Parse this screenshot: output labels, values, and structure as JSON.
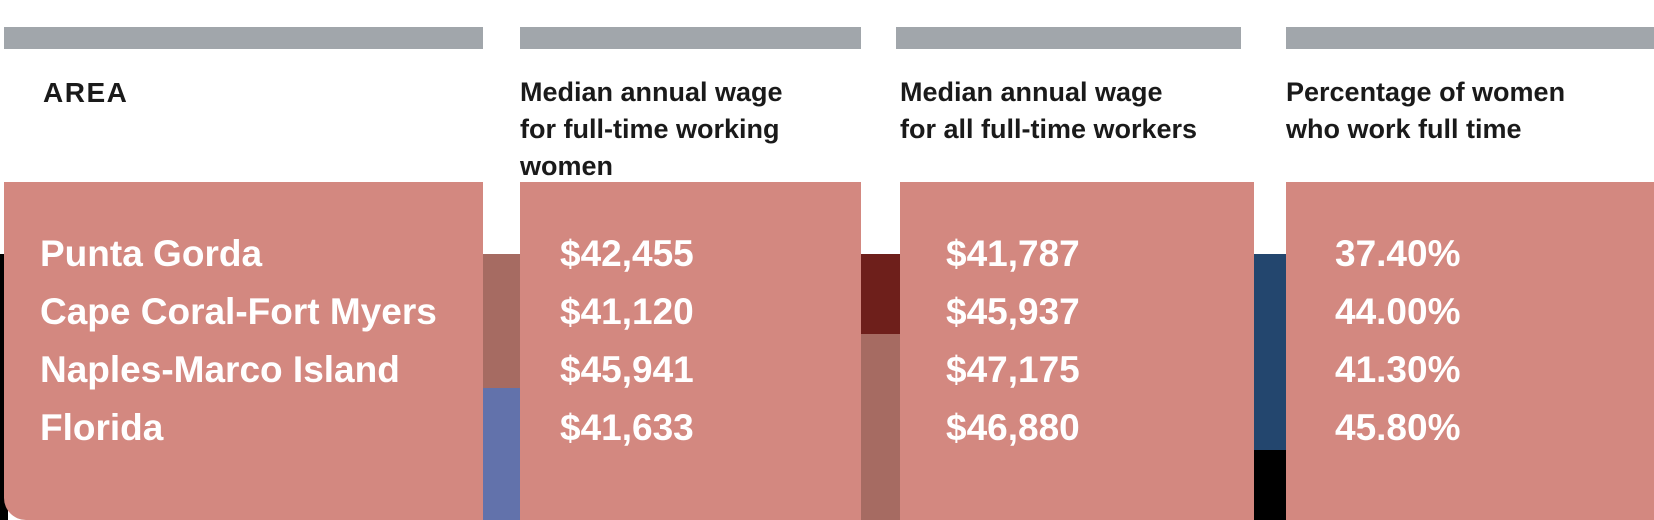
{
  "colors": {
    "header_bar": "#a1a6ab",
    "panel": "#d38880",
    "header_text": "#1a1a1a",
    "value_text": "#ffffff",
    "map_red": "#a66b62",
    "map_dark_red": "#6e1f1b",
    "map_blue": "#6272ab",
    "map_navy": "#23466e",
    "map_black": "#000000"
  },
  "table": {
    "columns": [
      {
        "header": "AREA",
        "values": [
          "Punta Gorda",
          "Cape Coral-Fort Myers",
          "Naples-Marco Island",
          "Florida"
        ]
      },
      {
        "header_lines": [
          "Median annual wage",
          "for full-time working",
          "women"
        ],
        "values": [
          "$42,455",
          "$41,120",
          "$45,941",
          "$41,633"
        ]
      },
      {
        "header_lines": [
          "Median annual wage",
          "for all full-time workers"
        ],
        "values": [
          "$41,787",
          "$45,937",
          "$47,175",
          "$46,880"
        ]
      },
      {
        "header_lines": [
          "Percentage of women",
          "who work full time"
        ],
        "values": [
          "37.40%",
          "44.00%",
          "41.30%",
          "45.80%"
        ]
      }
    ]
  }
}
